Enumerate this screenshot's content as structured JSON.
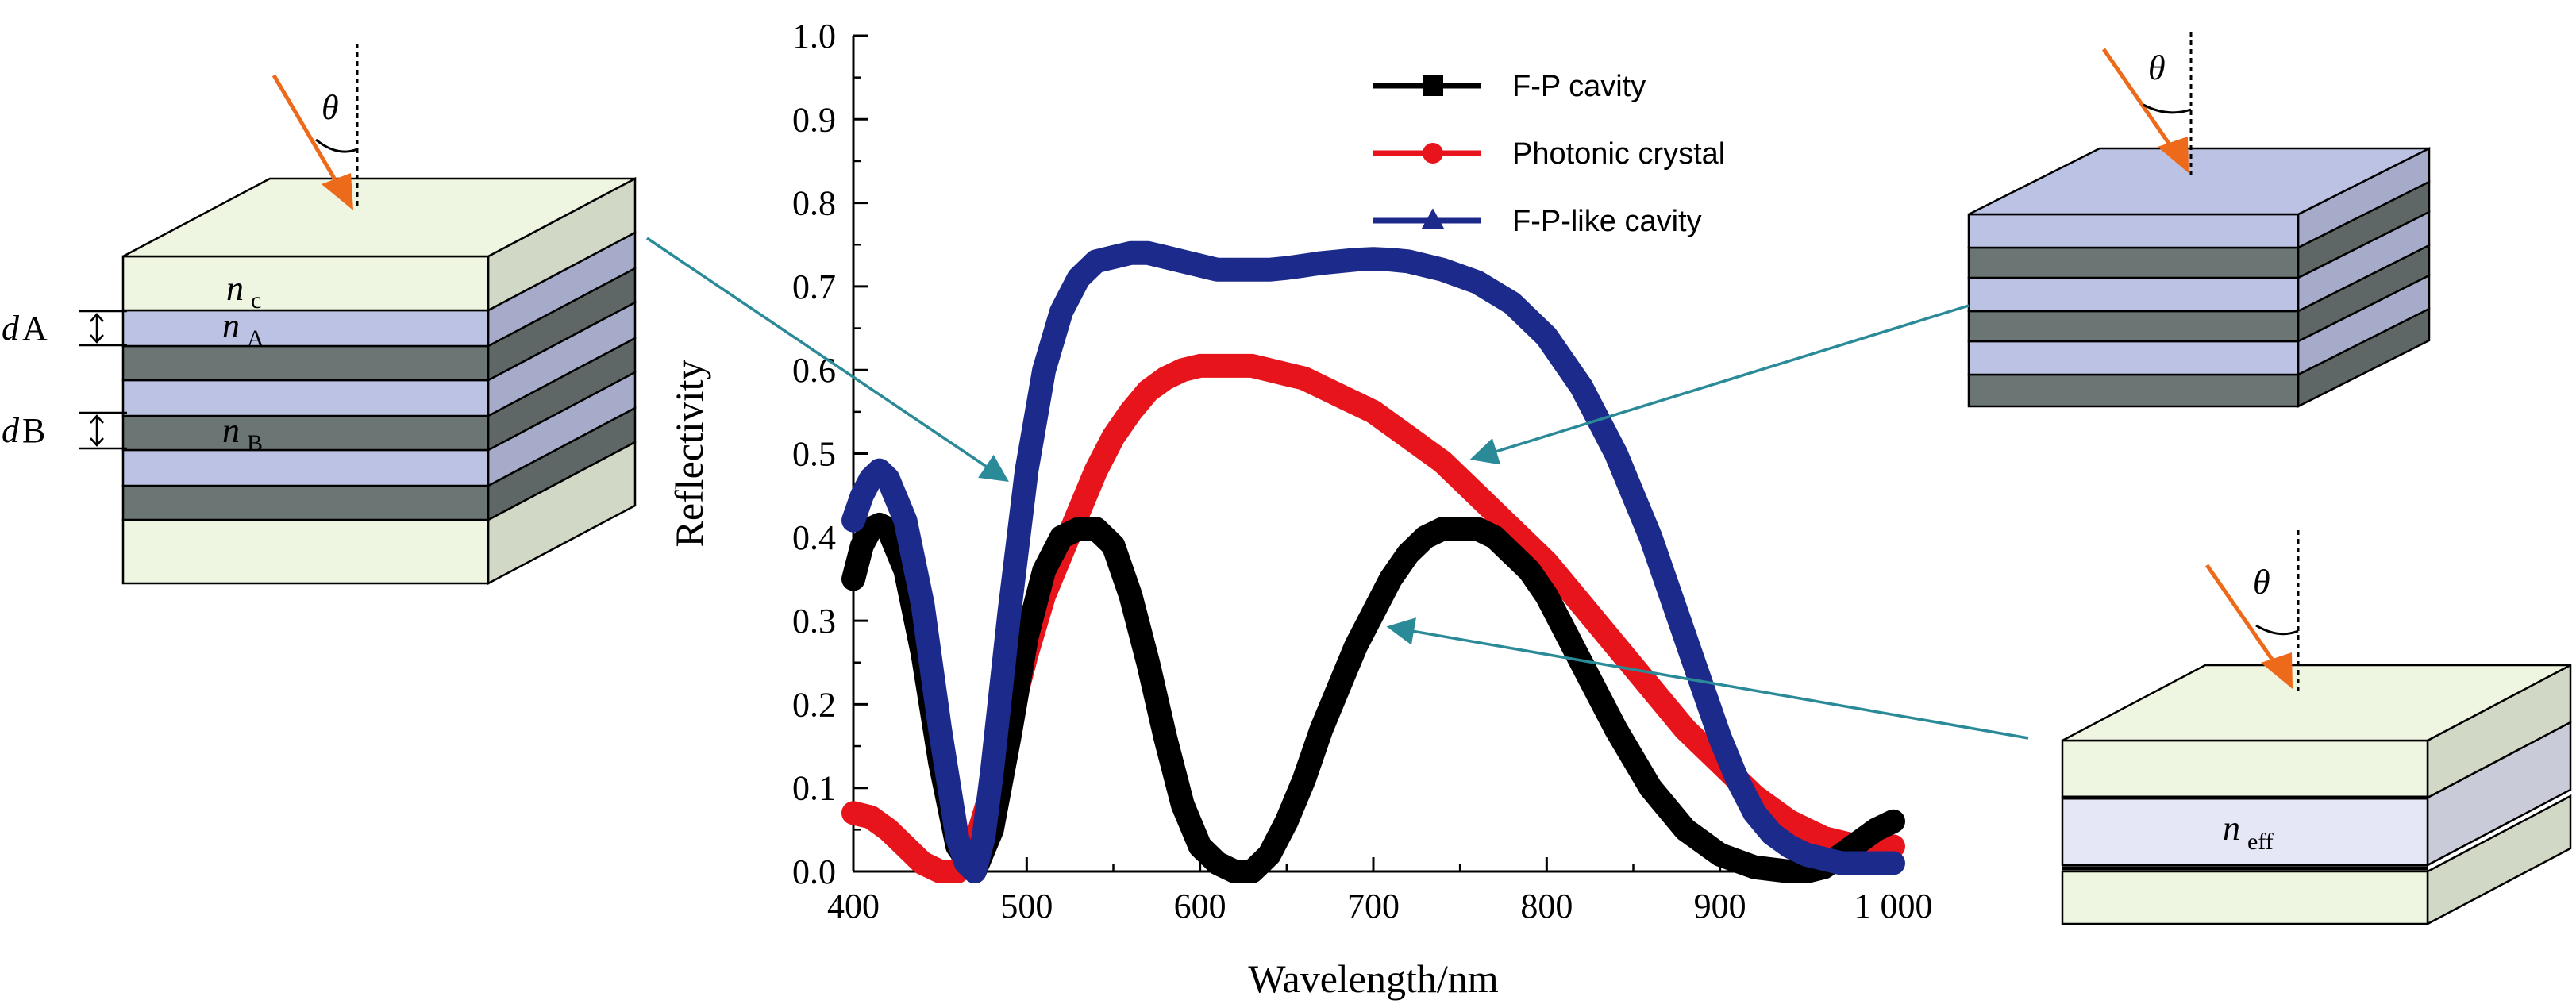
{
  "chart_data": {
    "type": "line",
    "xlabel": "Wavelength/nm",
    "ylabel": "Reflectivity",
    "xlim": [
      400,
      1000
    ],
    "ylim": [
      0.0,
      1.0
    ],
    "xticks": [
      400,
      500,
      600,
      700,
      800,
      900,
      1000
    ],
    "xtick_labels": [
      "400",
      "500",
      "600",
      "700",
      "800",
      "900",
      "1 000"
    ],
    "yticks": [
      0.0,
      0.1,
      0.2,
      0.3,
      0.4,
      0.5,
      0.6,
      0.7,
      0.8,
      0.9,
      1.0
    ],
    "ytick_labels": [
      "0.0",
      "0.1",
      "0.2",
      "0.3",
      "0.4",
      "0.5",
      "0.6",
      "0.7",
      "0.8",
      "0.9",
      "1.0"
    ],
    "grid": false,
    "legend_position": "top-center",
    "series": [
      {
        "name": "F-P cavity",
        "color": "#000000",
        "marker": "square",
        "x": [
          400,
          405,
          410,
          415,
          420,
          430,
          440,
          450,
          460,
          470,
          480,
          490,
          500,
          510,
          520,
          530,
          540,
          550,
          560,
          570,
          580,
          590,
          600,
          610,
          620,
          630,
          640,
          650,
          660,
          670,
          680,
          690,
          700,
          710,
          720,
          730,
          740,
          750,
          760,
          770,
          780,
          790,
          800,
          820,
          840,
          860,
          880,
          900,
          920,
          940,
          950,
          960,
          970,
          980,
          990,
          1000
        ],
        "y": [
          0.35,
          0.39,
          0.41,
          0.415,
          0.41,
          0.36,
          0.26,
          0.13,
          0.03,
          0.0,
          0.05,
          0.16,
          0.28,
          0.36,
          0.4,
          0.41,
          0.41,
          0.39,
          0.33,
          0.25,
          0.16,
          0.08,
          0.03,
          0.01,
          0.0,
          0.0,
          0.02,
          0.06,
          0.11,
          0.17,
          0.22,
          0.27,
          0.31,
          0.35,
          0.38,
          0.4,
          0.41,
          0.41,
          0.41,
          0.4,
          0.38,
          0.36,
          0.33,
          0.25,
          0.17,
          0.1,
          0.05,
          0.02,
          0.005,
          0.0,
          0.0,
          0.005,
          0.02,
          0.035,
          0.05,
          0.06
        ]
      },
      {
        "name": "Photonic crystal",
        "color": "#e8141c",
        "marker": "circle",
        "x": [
          400,
          410,
          420,
          430,
          440,
          450,
          460,
          470,
          480,
          490,
          500,
          510,
          520,
          530,
          540,
          550,
          560,
          570,
          580,
          590,
          600,
          610,
          620,
          630,
          640,
          650,
          660,
          670,
          680,
          690,
          700,
          720,
          740,
          760,
          780,
          800,
          820,
          840,
          860,
          880,
          900,
          920,
          940,
          960,
          980,
          1000
        ],
        "y": [
          0.07,
          0.065,
          0.05,
          0.03,
          0.01,
          0.0,
          0.0,
          0.03,
          0.1,
          0.18,
          0.26,
          0.33,
          0.38,
          0.43,
          0.48,
          0.52,
          0.55,
          0.575,
          0.59,
          0.6,
          0.605,
          0.605,
          0.605,
          0.605,
          0.6,
          0.595,
          0.59,
          0.58,
          0.57,
          0.56,
          0.55,
          0.52,
          0.49,
          0.45,
          0.41,
          0.37,
          0.32,
          0.27,
          0.22,
          0.17,
          0.13,
          0.09,
          0.06,
          0.04,
          0.03,
          0.03
        ]
      },
      {
        "name": "F-P-like cavity",
        "color": "#1c2a8c",
        "marker": "triangle",
        "x": [
          400,
          405,
          410,
          415,
          420,
          430,
          440,
          450,
          460,
          465,
          470,
          475,
          480,
          490,
          500,
          510,
          520,
          530,
          540,
          550,
          560,
          570,
          580,
          590,
          600,
          610,
          620,
          630,
          640,
          650,
          660,
          670,
          680,
          690,
          700,
          710,
          720,
          730,
          740,
          760,
          780,
          800,
          820,
          840,
          860,
          870,
          880,
          890,
          900,
          910,
          920,
          930,
          940,
          950,
          960,
          970,
          980,
          990,
          1000
        ],
        "y": [
          0.42,
          0.45,
          0.47,
          0.48,
          0.47,
          0.42,
          0.32,
          0.17,
          0.04,
          0.01,
          0.0,
          0.04,
          0.12,
          0.31,
          0.48,
          0.6,
          0.67,
          0.71,
          0.73,
          0.735,
          0.74,
          0.74,
          0.735,
          0.73,
          0.725,
          0.72,
          0.72,
          0.72,
          0.72,
          0.722,
          0.725,
          0.728,
          0.73,
          0.732,
          0.733,
          0.732,
          0.73,
          0.725,
          0.72,
          0.705,
          0.68,
          0.64,
          0.58,
          0.5,
          0.4,
          0.34,
          0.28,
          0.22,
          0.16,
          0.11,
          0.07,
          0.045,
          0.03,
          0.02,
          0.015,
          0.01,
          0.01,
          0.01,
          0.01
        ]
      }
    ]
  },
  "diagrams": {
    "left": {
      "theta": "θ",
      "n_c": "n",
      "n_c_sub": "c",
      "n_A": "n",
      "n_A_sub": "A",
      "n_B": "n",
      "n_B_sub": "B",
      "dA_d": "d",
      "dA_label": "A",
      "dB_d": "d",
      "dB_label": "B"
    },
    "top_right": {
      "theta": "θ"
    },
    "bottom_right": {
      "theta": "θ",
      "n_eff": "n",
      "n_eff_sub": "eff"
    }
  },
  "colors": {
    "incident_arrow": "#ec6a1a",
    "pointer_arrow": "#2a8a98",
    "layer_cover": "#eef5e0",
    "layer_A": "#bcc2e4",
    "layer_B": "#6b7574",
    "layer_eff": "#e6e7f6"
  }
}
